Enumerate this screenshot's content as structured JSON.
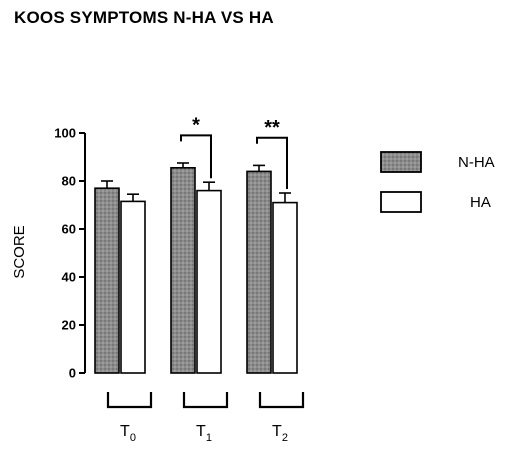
{
  "chart_data": {
    "type": "bar",
    "title": "KOOS SYMPTOMS N-HA VS HA",
    "ylabel": "SCORE",
    "xlabel": "",
    "ylim": [
      0,
      100
    ],
    "yticks": [
      0,
      20,
      40,
      60,
      80,
      100
    ],
    "categories": [
      {
        "base": "T",
        "sub": "0"
      },
      {
        "base": "T",
        "sub": "1"
      },
      {
        "base": "T",
        "sub": "2"
      }
    ],
    "series": [
      {
        "name": "N-HA",
        "values": [
          77,
          85.5,
          84
        ],
        "errors": [
          3,
          2,
          2.5
        ],
        "fill": "#8c8c8c",
        "pattern": "dotted"
      },
      {
        "name": "HA",
        "values": [
          71.5,
          76,
          71
        ],
        "errors": [
          3,
          3.5,
          4
        ],
        "fill": "#ffffff",
        "pattern": "none"
      }
    ],
    "significance": [
      {
        "category_index": 1,
        "label": "*"
      },
      {
        "category_index": 2,
        "label": "**"
      }
    ],
    "legend_position": "right",
    "grid": false
  }
}
